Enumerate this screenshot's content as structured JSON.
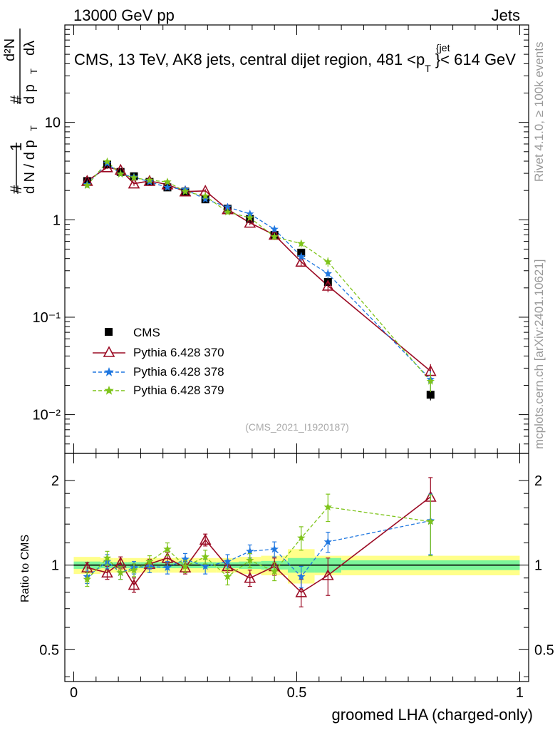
{
  "header": {
    "left": "13000 GeV pp",
    "right": "Jets",
    "title_main": "CMS, 13 TeV, AK8 jets, central dijet region, 481 <p",
    "title_sup": "{jet",
    "title_sub": "T",
    "title_end": "}< 614 GeV"
  },
  "side": {
    "rivet": "Rivet 4.1.0, ≥ 100k events",
    "mcplots": "mcplots.cern.ch [arXiv:2401.10621]"
  },
  "watermark": "(CMS_2021_I1920187)",
  "ylabel_main": {
    "hash1": "#",
    "one": "1",
    "dn": "d N / d p",
    "dn_sub": "T",
    "hash2": "#",
    "d2n": "d²N",
    "dpt_dl": "d p",
    "dpt_sub": "T",
    "dl": "dλ"
  },
  "ylabel_ratio": "Ratio to CMS",
  "xlabel": "groomed LHA (charged-only)",
  "colors": {
    "cms": "#000000",
    "p370": "#9b0b24",
    "p378": "#1f77e0",
    "p379": "#7ec41a",
    "band_inner": "#7cf59a",
    "band_outer": "#ffff8a"
  },
  "chart_data": [
    {
      "type": "scatter",
      "title": "CMS, 13 TeV, AK8 jets, central dijet region, 481 < pT jet < 614 GeV",
      "yscale": "log",
      "xlim": [
        -0.02,
        1.02
      ],
      "ylim": [
        0.004,
        100
      ],
      "yticks": [
        {
          "label": "10",
          "value": 10
        },
        {
          "label": "1",
          "value": 1
        },
        {
          "label": "10⁻¹",
          "value": 0.1
        },
        {
          "label": "10⁻²",
          "value": 0.01
        }
      ],
      "x": [
        0.03,
        0.075,
        0.105,
        0.135,
        0.17,
        0.21,
        0.25,
        0.295,
        0.345,
        0.395,
        0.45,
        0.51,
        0.57,
        0.8
      ],
      "series": [
        {
          "name": "CMS",
          "style": "square",
          "values": [
            2.5,
            3.7,
            3.1,
            2.8,
            2.45,
            2.15,
            1.95,
            1.62,
            1.3,
            1.02,
            0.7,
            0.46,
            0.23,
            0.016
          ],
          "errors": [
            0.1,
            0.1,
            0.1,
            0.1,
            0.08,
            0.07,
            0.06,
            0.05,
            0.04,
            0.03,
            0.03,
            0.03,
            0.02,
            0.002
          ]
        },
        {
          "name": "Pythia 6.428 370",
          "style": "triangle-solid",
          "values": [
            2.5,
            3.45,
            3.25,
            2.35,
            2.5,
            2.3,
            1.95,
            1.98,
            1.28,
            0.93,
            0.7,
            0.37,
            0.21,
            0.028
          ],
          "errors": [
            0.1,
            0.12,
            0.12,
            0.12,
            0.1,
            0.1,
            0.08,
            0.08,
            0.06,
            0.05,
            0.05,
            0.04,
            0.03,
            0.005
          ]
        },
        {
          "name": "Pythia 6.428 378",
          "style": "star-dashed",
          "values": [
            2.3,
            3.8,
            2.95,
            2.75,
            2.45,
            2.15,
            2.05,
            1.63,
            1.35,
            1.15,
            0.8,
            0.42,
            0.28,
            0.023
          ],
          "errors": [
            0.12,
            0.15,
            0.12,
            0.1,
            0.1,
            0.09,
            0.08,
            0.08,
            0.06,
            0.05,
            0.05,
            0.04,
            0.03,
            0.005
          ]
        },
        {
          "name": "Pythia 6.428 379",
          "style": "star-dashed",
          "values": [
            2.25,
            3.95,
            2.95,
            2.7,
            2.55,
            2.45,
            1.95,
            1.75,
            1.2,
            1.05,
            0.67,
            0.57,
            0.37,
            0.022
          ],
          "errors": [
            0.12,
            0.15,
            0.12,
            0.1,
            0.1,
            0.09,
            0.08,
            0.08,
            0.06,
            0.05,
            0.05,
            0.05,
            0.04,
            0.005
          ]
        }
      ]
    },
    {
      "type": "scatter",
      "title": "Ratio to CMS",
      "yscale": "log",
      "xlim": [
        -0.02,
        1.02
      ],
      "ylim": [
        0.385,
        2.5
      ],
      "yticks": [
        {
          "label": "2",
          "value": 2
        },
        {
          "label": "1",
          "value": 1
        },
        {
          "label": "0.5",
          "value": 0.5
        }
      ],
      "xticks": [
        {
          "label": "0",
          "value": 0
        },
        {
          "label": "0.5",
          "value": 0.5
        },
        {
          "label": "1",
          "value": 1
        }
      ],
      "x": [
        0.03,
        0.075,
        0.105,
        0.135,
        0.17,
        0.21,
        0.25,
        0.295,
        0.345,
        0.395,
        0.45,
        0.51,
        0.57,
        0.8
      ],
      "band": {
        "edges": [
          0.0,
          0.06,
          0.09,
          0.12,
          0.15,
          0.19,
          0.23,
          0.27,
          0.32,
          0.37,
          0.42,
          0.48,
          0.54,
          0.6,
          1.0
        ],
        "inner": [
          0.03,
          0.025,
          0.025,
          0.025,
          0.025,
          0.025,
          0.025,
          0.025,
          0.025,
          0.03,
          0.035,
          0.06,
          0.06,
          0.04
        ],
        "outer": [
          0.07,
          0.06,
          0.06,
          0.06,
          0.06,
          0.06,
          0.06,
          0.06,
          0.06,
          0.07,
          0.08,
          0.14,
          0.08,
          0.08
        ]
      },
      "series": [
        {
          "name": "Pythia 6.428 370",
          "values": [
            0.98,
            0.94,
            1.02,
            0.85,
            1.01,
            1.06,
            0.98,
            1.23,
            0.99,
            0.9,
            0.99,
            0.8,
            0.92,
            1.75
          ],
          "errors": [
            0.04,
            0.05,
            0.05,
            0.05,
            0.04,
            0.05,
            0.05,
            0.06,
            0.05,
            0.06,
            0.07,
            0.09,
            0.14,
            0.3
          ]
        },
        {
          "name": "Pythia 6.428 378",
          "values": [
            0.91,
            1.03,
            0.94,
            0.98,
            0.99,
            0.98,
            1.05,
            0.99,
            1.03,
            1.12,
            1.14,
            0.91,
            1.21,
            1.44
          ],
          "errors": [
            0.05,
            0.06,
            0.05,
            0.05,
            0.05,
            0.05,
            0.05,
            0.06,
            0.06,
            0.06,
            0.07,
            0.08,
            0.1,
            0.35
          ]
        },
        {
          "name": "Pythia 6.428 379",
          "values": [
            0.89,
            1.06,
            0.94,
            0.96,
            1.03,
            1.14,
            0.99,
            1.07,
            0.91,
            1.04,
            0.95,
            1.25,
            1.61,
            1.43
          ],
          "errors": [
            0.05,
            0.06,
            0.05,
            0.05,
            0.05,
            0.06,
            0.05,
            0.06,
            0.06,
            0.06,
            0.07,
            0.12,
            0.18,
            0.35
          ]
        }
      ]
    }
  ],
  "legend": [
    {
      "label": "CMS"
    },
    {
      "label": "Pythia 6.428 370"
    },
    {
      "label": "Pythia 6.428 378"
    },
    {
      "label": "Pythia 6.428 379"
    }
  ]
}
